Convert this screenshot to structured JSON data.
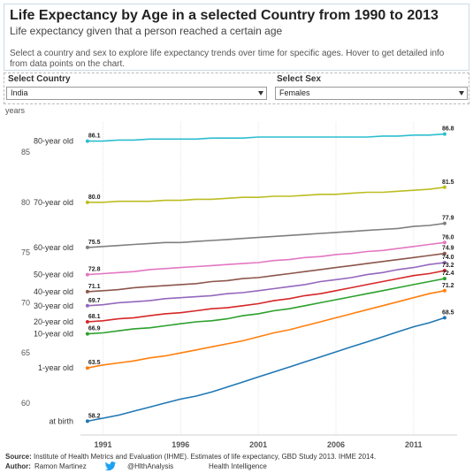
{
  "header": {
    "title": "Life Expectancy by Age in a selected Country from 1990 to 2013",
    "subtitle": "Life expectancy given that a person reached a certain age",
    "description": "Select a country and sex to explore life expectancy trends over time for specific ages. Hover to get detailed info from data points on the chart."
  },
  "filters": {
    "country": {
      "label": "Select Country",
      "value": "India"
    },
    "sex": {
      "label": "Select Sex",
      "value": "Females"
    }
  },
  "chart_data": {
    "type": "line",
    "ylabel": "years",
    "xlabel": "",
    "xlim": [
      1990,
      2013
    ],
    "ylim": [
      57,
      88
    ],
    "x_ticks": [
      1991,
      1996,
      2001,
      2006,
      2011
    ],
    "y_ticks": [
      60,
      65,
      70,
      75,
      80,
      85
    ],
    "grid": "vertical",
    "series": [
      {
        "name": "80-year old",
        "color": "#2dbdcf",
        "label_start": "86.1",
        "label_end": "86.8",
        "values": [
          [
            1990,
            86.1
          ],
          [
            1991,
            86.1
          ],
          [
            1992,
            86.2
          ],
          [
            1993,
            86.2
          ],
          [
            1994,
            86.3
          ],
          [
            1995,
            86.3
          ],
          [
            1996,
            86.3
          ],
          [
            1997,
            86.3
          ],
          [
            1998,
            86.4
          ],
          [
            1999,
            86.4
          ],
          [
            2000,
            86.4
          ],
          [
            2001,
            86.5
          ],
          [
            2002,
            86.5
          ],
          [
            2003,
            86.5
          ],
          [
            2004,
            86.5
          ],
          [
            2005,
            86.5
          ],
          [
            2006,
            86.5
          ],
          [
            2007,
            86.5
          ],
          [
            2008,
            86.5
          ],
          [
            2009,
            86.6
          ],
          [
            2010,
            86.6
          ],
          [
            2011,
            86.7
          ],
          [
            2012,
            86.7
          ],
          [
            2013,
            86.8
          ]
        ]
      },
      {
        "name": "70-year old",
        "color": "#bcbd22",
        "label_start": "80.0",
        "label_end": "81.5",
        "values": [
          [
            1990,
            80.0
          ],
          [
            1991,
            80.0
          ],
          [
            1992,
            80.1
          ],
          [
            1993,
            80.1
          ],
          [
            1994,
            80.1
          ],
          [
            1995,
            80.2
          ],
          [
            1996,
            80.2
          ],
          [
            1997,
            80.3
          ],
          [
            1998,
            80.3
          ],
          [
            1999,
            80.4
          ],
          [
            2000,
            80.5
          ],
          [
            2001,
            80.5
          ],
          [
            2002,
            80.6
          ],
          [
            2003,
            80.6
          ],
          [
            2004,
            80.7
          ],
          [
            2005,
            80.8
          ],
          [
            2006,
            80.8
          ],
          [
            2007,
            80.9
          ],
          [
            2008,
            81.0
          ],
          [
            2009,
            81.0
          ],
          [
            2010,
            81.1
          ],
          [
            2011,
            81.2
          ],
          [
            2012,
            81.3
          ],
          [
            2013,
            81.5
          ]
        ]
      },
      {
        "name": "60-year old",
        "color": "#7f7f7f",
        "label_start": "75.5",
        "label_end": "77.9",
        "values": [
          [
            1990,
            75.5
          ],
          [
            1991,
            75.6
          ],
          [
            1992,
            75.7
          ],
          [
            1993,
            75.8
          ],
          [
            1994,
            75.9
          ],
          [
            1995,
            76.0
          ],
          [
            1996,
            76.0
          ],
          [
            1997,
            76.1
          ],
          [
            1998,
            76.2
          ],
          [
            1999,
            76.3
          ],
          [
            2000,
            76.4
          ],
          [
            2001,
            76.5
          ],
          [
            2002,
            76.6
          ],
          [
            2003,
            76.7
          ],
          [
            2004,
            76.8
          ],
          [
            2005,
            76.9
          ],
          [
            2006,
            77.0
          ],
          [
            2007,
            77.1
          ],
          [
            2008,
            77.2
          ],
          [
            2009,
            77.3
          ],
          [
            2010,
            77.4
          ],
          [
            2011,
            77.6
          ],
          [
            2012,
            77.7
          ],
          [
            2013,
            77.9
          ]
        ]
      },
      {
        "name": "50-year old",
        "color": "#e377c2",
        "label_start": "72.8",
        "label_end": "76.0",
        "values": [
          [
            1990,
            72.8
          ],
          [
            1991,
            72.9
          ],
          [
            1992,
            73.0
          ],
          [
            1993,
            73.1
          ],
          [
            1994,
            73.3
          ],
          [
            1995,
            73.4
          ],
          [
            1996,
            73.5
          ],
          [
            1997,
            73.6
          ],
          [
            1998,
            73.7
          ],
          [
            1999,
            73.8
          ],
          [
            2000,
            73.9
          ],
          [
            2001,
            74.0
          ],
          [
            2002,
            74.2
          ],
          [
            2003,
            74.3
          ],
          [
            2004,
            74.5
          ],
          [
            2005,
            74.6
          ],
          [
            2006,
            74.8
          ],
          [
            2007,
            74.9
          ],
          [
            2008,
            75.1
          ],
          [
            2009,
            75.2
          ],
          [
            2010,
            75.4
          ],
          [
            2011,
            75.6
          ],
          [
            2012,
            75.8
          ],
          [
            2013,
            76.0
          ]
        ]
      },
      {
        "name": "40-year old",
        "color": "#8c564b",
        "label_start": "71.1",
        "label_end": "74.9",
        "values": [
          [
            1990,
            71.1
          ],
          [
            1991,
            71.2
          ],
          [
            1992,
            71.3
          ],
          [
            1993,
            71.5
          ],
          [
            1994,
            71.6
          ],
          [
            1995,
            71.7
          ],
          [
            1996,
            71.8
          ],
          [
            1997,
            71.9
          ],
          [
            1998,
            72.1
          ],
          [
            1999,
            72.2
          ],
          [
            2000,
            72.4
          ],
          [
            2001,
            72.5
          ],
          [
            2002,
            72.7
          ],
          [
            2003,
            72.9
          ],
          [
            2004,
            73.1
          ],
          [
            2005,
            73.3
          ],
          [
            2006,
            73.5
          ],
          [
            2007,
            73.7
          ],
          [
            2008,
            73.9
          ],
          [
            2009,
            74.1
          ],
          [
            2010,
            74.3
          ],
          [
            2011,
            74.5
          ],
          [
            2012,
            74.7
          ],
          [
            2013,
            74.9
          ]
        ]
      },
      {
        "name": "30-year old",
        "color": "#9467bd",
        "label_start": "69.7",
        "label_end": "74.0",
        "values": [
          [
            1990,
            69.7
          ],
          [
            1991,
            69.8
          ],
          [
            1992,
            70.0
          ],
          [
            1993,
            70.1
          ],
          [
            1994,
            70.2
          ],
          [
            1995,
            70.4
          ],
          [
            1996,
            70.5
          ],
          [
            1997,
            70.6
          ],
          [
            1998,
            70.7
          ],
          [
            1999,
            70.9
          ],
          [
            2000,
            71.0
          ],
          [
            2001,
            71.2
          ],
          [
            2002,
            71.4
          ],
          [
            2003,
            71.6
          ],
          [
            2004,
            71.8
          ],
          [
            2005,
            72.1
          ],
          [
            2006,
            72.3
          ],
          [
            2007,
            72.5
          ],
          [
            2008,
            72.8
          ],
          [
            2009,
            73.0
          ],
          [
            2010,
            73.3
          ],
          [
            2011,
            73.5
          ],
          [
            2012,
            73.8
          ],
          [
            2013,
            74.0
          ]
        ]
      },
      {
        "name": "20-year old",
        "color": "#d62728",
        "label_start": "68.1",
        "label_end": "73.2",
        "values": [
          [
            1990,
            68.1
          ],
          [
            1991,
            68.2
          ],
          [
            1992,
            68.4
          ],
          [
            1993,
            68.5
          ],
          [
            1994,
            68.7
          ],
          [
            1995,
            68.9
          ],
          [
            1996,
            69.0
          ],
          [
            1997,
            69.2
          ],
          [
            1998,
            69.4
          ],
          [
            1999,
            69.5
          ],
          [
            2000,
            69.7
          ],
          [
            2001,
            69.9
          ],
          [
            2002,
            70.2
          ],
          [
            2003,
            70.4
          ],
          [
            2004,
            70.7
          ],
          [
            2005,
            70.9
          ],
          [
            2006,
            71.2
          ],
          [
            2007,
            71.5
          ],
          [
            2008,
            71.8
          ],
          [
            2009,
            72.1
          ],
          [
            2010,
            72.4
          ],
          [
            2011,
            72.7
          ],
          [
            2012,
            72.9
          ],
          [
            2013,
            73.2
          ]
        ]
      },
      {
        "name": "10-year old",
        "color": "#2ca02c",
        "label_start": "66.9",
        "label_end": "72.4",
        "values": [
          [
            1990,
            66.9
          ],
          [
            1991,
            67.0
          ],
          [
            1992,
            67.2
          ],
          [
            1993,
            67.4
          ],
          [
            1994,
            67.5
          ],
          [
            1995,
            67.7
          ],
          [
            1996,
            67.9
          ],
          [
            1997,
            68.1
          ],
          [
            1998,
            68.2
          ],
          [
            1999,
            68.4
          ],
          [
            2000,
            68.7
          ],
          [
            2001,
            68.9
          ],
          [
            2002,
            69.2
          ],
          [
            2003,
            69.4
          ],
          [
            2004,
            69.7
          ],
          [
            2005,
            70.0
          ],
          [
            2006,
            70.3
          ],
          [
            2007,
            70.6
          ],
          [
            2008,
            70.9
          ],
          [
            2009,
            71.2
          ],
          [
            2010,
            71.5
          ],
          [
            2011,
            71.8
          ],
          [
            2012,
            72.1
          ],
          [
            2013,
            72.4
          ]
        ]
      },
      {
        "name": "1-year old",
        "color": "#ff7f0e",
        "label_start": "63.5",
        "label_end": "71.2",
        "values": [
          [
            1990,
            63.5
          ],
          [
            1991,
            63.8
          ],
          [
            1992,
            64.0
          ],
          [
            1993,
            64.2
          ],
          [
            1994,
            64.5
          ],
          [
            1995,
            64.7
          ],
          [
            1996,
            65.0
          ],
          [
            1997,
            65.3
          ],
          [
            1998,
            65.6
          ],
          [
            1999,
            65.9
          ],
          [
            2000,
            66.2
          ],
          [
            2001,
            66.6
          ],
          [
            2002,
            67.0
          ],
          [
            2003,
            67.3
          ],
          [
            2004,
            67.7
          ],
          [
            2005,
            68.1
          ],
          [
            2006,
            68.5
          ],
          [
            2007,
            68.9
          ],
          [
            2008,
            69.3
          ],
          [
            2009,
            69.7
          ],
          [
            2010,
            70.1
          ],
          [
            2011,
            70.5
          ],
          [
            2012,
            70.9
          ],
          [
            2013,
            71.2
          ]
        ]
      },
      {
        "name": "at birth",
        "color": "#1f77b4",
        "label_start": "58.2",
        "label_end": "68.5",
        "values": [
          [
            1990,
            58.2
          ],
          [
            1991,
            58.5
          ],
          [
            1992,
            58.8
          ],
          [
            1993,
            59.2
          ],
          [
            1994,
            59.6
          ],
          [
            1995,
            60.0
          ],
          [
            1996,
            60.4
          ],
          [
            1997,
            60.7
          ],
          [
            1998,
            61.1
          ],
          [
            1999,
            61.6
          ],
          [
            2000,
            62.1
          ],
          [
            2001,
            62.6
          ],
          [
            2002,
            63.1
          ],
          [
            2003,
            63.6
          ],
          [
            2004,
            64.1
          ],
          [
            2005,
            64.6
          ],
          [
            2006,
            65.1
          ],
          [
            2007,
            65.6
          ],
          [
            2008,
            66.1
          ],
          [
            2009,
            66.6
          ],
          [
            2010,
            67.1
          ],
          [
            2011,
            67.6
          ],
          [
            2012,
            68.0
          ],
          [
            2013,
            68.5
          ]
        ]
      }
    ]
  },
  "footer": {
    "source_label": "Source:",
    "source_text": "Institute of Health Metrics and Evaluation (IHME). Estimates of life expectancy, GBD Study 2013. IHME 2014.",
    "author_label": "Author:",
    "author_name": "Ramon Martinez",
    "twitter_icon": "twitter-bird-icon",
    "twitter_handle": "@HlthAnalysis",
    "org": "Health Intelligence"
  }
}
